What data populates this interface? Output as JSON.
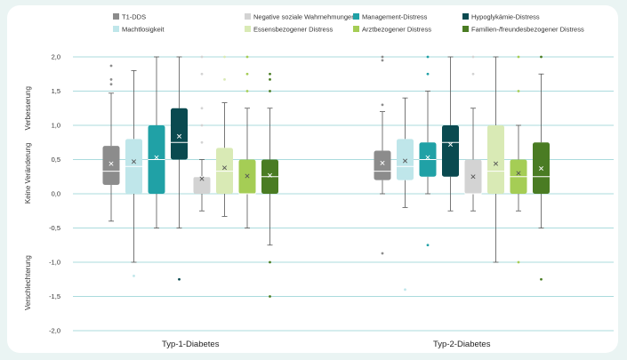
{
  "chart_data": {
    "type": "box",
    "groups": [
      "Typ-1-Diabetes",
      "Typ-2-Diabetes"
    ],
    "ylim": [
      -2.0,
      2.0
    ],
    "yticks": [
      "2,0",
      "1,5",
      "1,0",
      "0,5",
      "0,0",
      "-0,5",
      "-1,0",
      "-1,5",
      "-2,0"
    ],
    "y_zone_labels": [
      "Verbesserung",
      "Keine Veränderung",
      "Verschlechterung"
    ],
    "grid": true,
    "legend_position": "top",
    "series": [
      {
        "name": "T1-DDS",
        "color": "#8c8c8c",
        "boxes": [
          {
            "min": -0.4,
            "q1": 0.13,
            "median": 0.33,
            "q3": 0.7,
            "max": 1.47,
            "mean": 0.44,
            "outliers": [
              1.87,
              1.67,
              1.6
            ]
          },
          {
            "min": 0.0,
            "q1": 0.2,
            "median": 0.33,
            "q3": 0.63,
            "max": 1.2,
            "mean": 0.45,
            "outliers": [
              1.3,
              1.95,
              2.0,
              -0.87
            ]
          }
        ]
      },
      {
        "name": "Machtlosigkeit",
        "color": "#bfe6ea",
        "boxes": [
          {
            "min": -1.0,
            "q1": 0.0,
            "median": 0.4,
            "q3": 0.8,
            "max": 1.8,
            "mean": 0.47,
            "outliers": [
              -1.2
            ]
          },
          {
            "min": -0.2,
            "q1": 0.2,
            "median": 0.4,
            "q3": 0.8,
            "max": 1.4,
            "mean": 0.48,
            "outliers": [
              -1.4
            ]
          }
        ]
      },
      {
        "name": "Negative soziale Wahrnehmungen",
        "color": "#d3d3d3",
        "boxes": [
          {
            "min": -0.25,
            "q1": 0.0,
            "median": 0.25,
            "q3": 0.25,
            "max": 0.5,
            "mean": 0.22,
            "outliers": [
              0.75,
              1.0,
              1.25,
              1.75,
              2.0
            ]
          },
          {
            "min": -0.25,
            "q1": 0.0,
            "median": 0.0,
            "q3": 0.5,
            "max": 1.25,
            "mean": 0.25,
            "outliers": [
              1.75,
              2.0
            ]
          }
        ]
      },
      {
        "name": "Essensbezogener Distress",
        "color": "#d9eab5",
        "boxes": [
          {
            "min": -0.33,
            "q1": 0.0,
            "median": 0.33,
            "q3": 0.67,
            "max": 1.33,
            "mean": 0.38,
            "outliers": [
              1.67,
              2.0
            ]
          },
          {
            "min": -1.0,
            "q1": 0.0,
            "median": 0.33,
            "q3": 1.0,
            "max": 2.0,
            "mean": 0.44,
            "outliers": []
          }
        ]
      },
      {
        "name": "Management-Distress",
        "color": "#20a1a6",
        "boxes": [
          {
            "min": -0.5,
            "q1": 0.0,
            "median": 0.5,
            "q3": 1.0,
            "max": 2.0,
            "mean": 0.53,
            "outliers": []
          },
          {
            "min": 0.0,
            "q1": 0.25,
            "median": 0.5,
            "q3": 0.75,
            "max": 1.5,
            "mean": 0.53,
            "outliers": [
              1.75,
              2.0,
              -0.75
            ]
          }
        ]
      },
      {
        "name": "Arztbezogener Distress",
        "color": "#a5cd55",
        "boxes": [
          {
            "min": -0.5,
            "q1": 0.0,
            "median": 0.0,
            "q3": 0.5,
            "max": 1.25,
            "mean": 0.26,
            "outliers": [
              1.5,
              1.75,
              2.0
            ]
          },
          {
            "min": -0.25,
            "q1": 0.0,
            "median": 0.25,
            "q3": 0.5,
            "max": 1.0,
            "mean": 0.3,
            "outliers": [
              1.5,
              2.0,
              -1.0
            ]
          }
        ]
      },
      {
        "name": "Hypoglykämie-Distress",
        "color": "#0a4a50",
        "boxes": [
          {
            "min": -0.5,
            "q1": 0.5,
            "median": 0.75,
            "q3": 1.25,
            "max": 2.0,
            "mean": 0.84,
            "outliers": [
              -1.25
            ]
          },
          {
            "min": -0.25,
            "q1": 0.25,
            "median": 0.75,
            "q3": 1.0,
            "max": 2.0,
            "mean": 0.72,
            "outliers": []
          }
        ]
      },
      {
        "name": "Familien-/freundesbezogener Distress",
        "color": "#4a7c23",
        "boxes": [
          {
            "min": -0.75,
            "q1": 0.0,
            "median": 0.25,
            "q3": 0.5,
            "max": 1.25,
            "mean": 0.27,
            "outliers": [
              1.5,
              1.67,
              1.75,
              -1.0,
              -1.5
            ]
          },
          {
            "min": -0.5,
            "q1": 0.0,
            "median": 0.25,
            "q3": 0.75,
            "max": 1.75,
            "mean": 0.37,
            "outliers": [
              2.0,
              -1.25
            ]
          }
        ]
      }
    ]
  }
}
